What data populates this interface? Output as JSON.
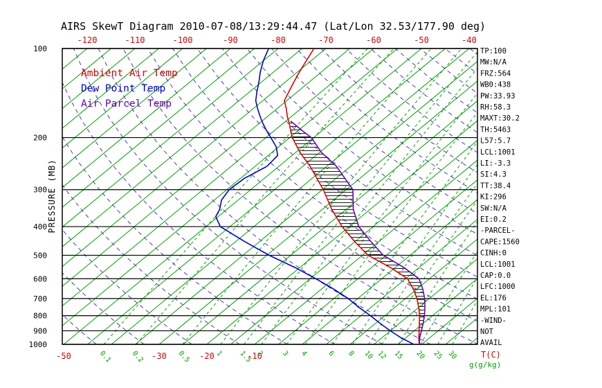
{
  "title": "AIRS SkewT Diagram 2010-07-08/13:29:44.47 (Lat/Lon 32.53/177.90 deg)",
  "colors": {
    "background": "#ffffff",
    "frame": "#000000",
    "axis_text": "#000000",
    "temp_axis_text": "#dd0000",
    "mix_axis_text": "#00a000",
    "ambient": "#dd0000",
    "dewpoint": "#0000c8",
    "parcel": "#6600bb",
    "isotherm": "#00a000",
    "mixing_ratio": "#00a000",
    "dry_adiabat": "#4b3aa8",
    "hatch": "#000000"
  },
  "legend": {
    "items": [
      {
        "label": "Ambient Air Temp",
        "color": "#dd0000"
      },
      {
        "label": "Dew Point Temp",
        "color": "#0000c8"
      },
      {
        "label": "Air Parcel Temp",
        "color": "#6600bb"
      }
    ]
  },
  "axes": {
    "pressure_axis_label": "PRESSURE (MB)",
    "pressure_ticks": [
      100,
      200,
      300,
      400,
      500,
      600,
      700,
      800,
      900,
      1000
    ],
    "top_temp_ticks": [
      -120,
      -110,
      -100,
      -90,
      -80,
      -70,
      -60,
      -50,
      -40
    ],
    "bottom_temp_ticks": [
      -50,
      -30,
      -20,
      -10
    ],
    "temp_unit_label": "T(C)",
    "mixing_ratio_ticks": [
      0.1,
      0.2,
      0.5,
      1,
      1.5,
      2,
      3,
      4,
      6,
      8,
      10,
      12,
      15,
      20,
      25,
      30
    ],
    "mixing_ratio_unit_label": "g(g/kg)"
  },
  "stats_panel": {
    "lines": [
      "TP:100",
      "MW:N/A",
      "FRZ:564",
      "WB0:438",
      "PW:33.93",
      "RH:58.3",
      "MAXT:30.2",
      "TH:5463",
      "L57:5.7",
      "LCL:1001",
      "LI:-3.3",
      "SI:4.3",
      "TT:38.4",
      "KI:296",
      "SW:N/A",
      "EI:0.2",
      "-PARCEL-",
      "CAPE:1560",
      "CINH:0",
      "LCL:1001",
      "CAP:0.0",
      "LFC:1000",
      "EL:176",
      "MPL:101",
      "-WIND-",
      "NOT",
      "AVAIL"
    ]
  },
  "chart_data": {
    "type": "line",
    "subtype": "skewt_logp_sounding",
    "title": "AIRS SkewT Diagram 2010-07-08/13:29:44.47 (Lat/Lon 32.53/177.90 deg)",
    "ylabel": "PRESSURE (MB)",
    "xlabel": "T(C)",
    "y_axis": {
      "scale": "log",
      "range_mb": [
        100,
        1000
      ],
      "ticks": [
        100,
        200,
        300,
        400,
        500,
        600,
        700,
        800,
        900,
        1000
      ]
    },
    "x_axis_bottom_temp_range_c": [
      -50,
      37
    ],
    "x_axis_top_temp_range_c": [
      -125,
      -37
    ],
    "grid": {
      "isobars_mb": [
        100,
        200,
        300,
        400,
        500,
        600,
        700,
        800,
        900,
        1000
      ],
      "isotherm_step_c": 5
    },
    "dry_adiabat_theta_range_k": [
      220,
      460
    ],
    "dry_adiabat_step_k": 10,
    "series": [
      {
        "name": "Ambient Air Temp",
        "color_key": "ambient",
        "points_p_t": [
          [
            1000,
            24.5
          ],
          [
            975,
            23.6
          ],
          [
            950,
            22.7
          ],
          [
            925,
            21.9
          ],
          [
            900,
            21.0
          ],
          [
            850,
            19.2
          ],
          [
            800,
            17.3
          ],
          [
            750,
            15.0
          ],
          [
            700,
            12.4
          ],
          [
            650,
            9.2
          ],
          [
            600,
            5.4
          ],
          [
            550,
            -1.0
          ],
          [
            500,
            -8.8
          ],
          [
            450,
            -15.0
          ],
          [
            400,
            -21.5
          ],
          [
            350,
            -28.0
          ],
          [
            300,
            -34.8
          ],
          [
            250,
            -43.5
          ],
          [
            225,
            -49.0
          ],
          [
            200,
            -54.5
          ],
          [
            190,
            -56.5
          ],
          [
            180,
            -58.5
          ],
          [
            170,
            -60.8
          ],
          [
            160,
            -63.0
          ],
          [
            150,
            -65.5
          ],
          [
            140,
            -66.8
          ],
          [
            130,
            -68.2
          ],
          [
            120,
            -69.6
          ],
          [
            110,
            -71.0
          ],
          [
            100,
            -72.5
          ]
        ]
      },
      {
        "name": "Dew Point Temp",
        "color_key": "dewpoint",
        "points_p_t": [
          [
            1000,
            23.3
          ],
          [
            975,
            21.2
          ],
          [
            950,
            19.0
          ],
          [
            925,
            17.0
          ],
          [
            900,
            15.0
          ],
          [
            850,
            11.0
          ],
          [
            800,
            7.0
          ],
          [
            750,
            2.5
          ],
          [
            700,
            -2.0
          ],
          [
            650,
            -7.5
          ],
          [
            600,
            -13.8
          ],
          [
            550,
            -21.0
          ],
          [
            500,
            -29.5
          ],
          [
            450,
            -38.0
          ],
          [
            400,
            -47.0
          ],
          [
            370,
            -50.5
          ],
          [
            350,
            -51.5
          ],
          [
            325,
            -53.5
          ],
          [
            300,
            -54.5
          ],
          [
            275,
            -54.2
          ],
          [
            250,
            -52.5
          ],
          [
            230,
            -53.0
          ],
          [
            215,
            -55.5
          ],
          [
            200,
            -59.0
          ],
          [
            190,
            -61.5
          ],
          [
            180,
            -64.0
          ],
          [
            170,
            -66.5
          ],
          [
            160,
            -69.0
          ],
          [
            150,
            -71.5
          ],
          [
            140,
            -73.5
          ],
          [
            130,
            -75.5
          ],
          [
            120,
            -77.8
          ],
          [
            110,
            -80.0
          ],
          [
            100,
            -82.0
          ]
        ]
      },
      {
        "name": "Air Parcel Temp",
        "color_key": "parcel",
        "points_p_t": [
          [
            1000,
            24.5
          ],
          [
            950,
            22.9
          ],
          [
            900,
            21.5
          ],
          [
            850,
            20.0
          ],
          [
            800,
            18.3
          ],
          [
            750,
            16.3
          ],
          [
            700,
            14.0
          ],
          [
            650,
            11.2
          ],
          [
            600,
            7.8
          ],
          [
            550,
            1.8
          ],
          [
            500,
            -5.6
          ],
          [
            450,
            -11.6
          ],
          [
            400,
            -18.0
          ],
          [
            350,
            -23.5
          ],
          [
            300,
            -28.6
          ],
          [
            250,
            -38.0
          ],
          [
            225,
            -44.5
          ],
          [
            200,
            -50.5
          ],
          [
            190,
            -54.0
          ],
          [
            180,
            -57.5
          ],
          [
            176,
            -59.0
          ]
        ]
      }
    ],
    "cape_hatch_between": [
      "Ambient Air Temp",
      "Air Parcel Temp"
    ],
    "cape_hatch_pressure_range": [
      176,
      1000
    ]
  }
}
